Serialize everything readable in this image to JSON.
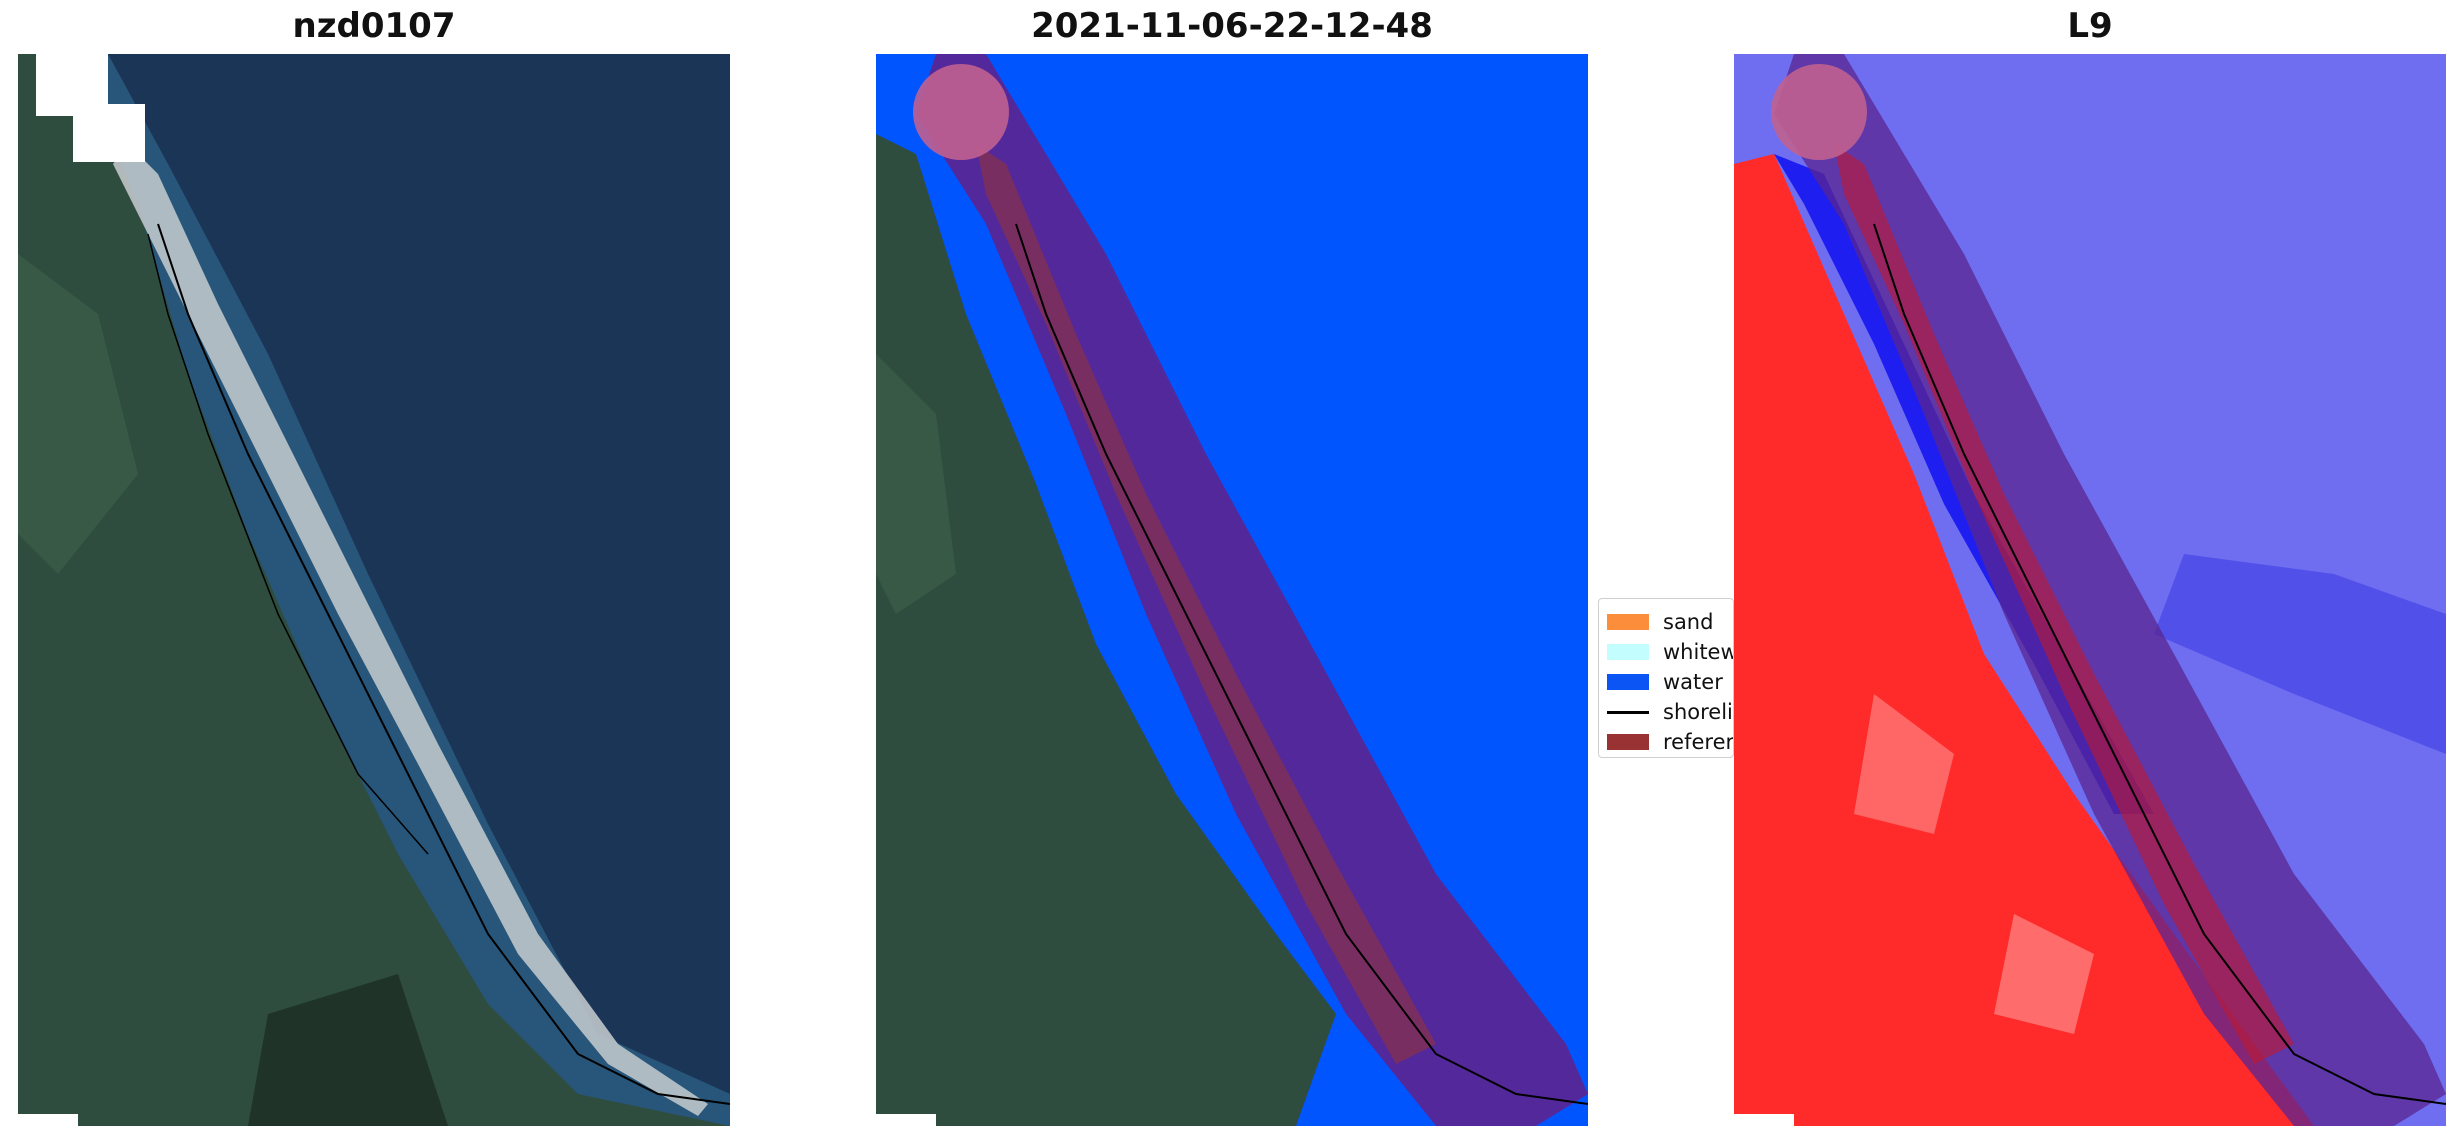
{
  "panels": [
    {
      "title": "nzd0107"
    },
    {
      "title": "2021-11-06-22-12-48"
    },
    {
      "title": "L9"
    }
  ],
  "legend": {
    "items": [
      {
        "label": "sand",
        "color": "#fc8d3b",
        "kind": "patch"
      },
      {
        "label": "whitew",
        "color": "#c4fdfd",
        "kind": "patch"
      },
      {
        "label": "water",
        "color": "#0a55f4",
        "kind": "patch"
      },
      {
        "label": "shoreli",
        "color": "#000000",
        "kind": "line"
      },
      {
        "label": "referer",
        "color": "#993333",
        "kind": "patch"
      }
    ]
  },
  "colors": {
    "ocean": "#1b3556",
    "land": "#2f4d3e",
    "beach": "#c8ccd0",
    "water_class": "#0055ff",
    "buffer": "#5a2592",
    "reference": "#993333",
    "index_land": "#ff2a2a",
    "index_water": "#6f6ef0"
  }
}
